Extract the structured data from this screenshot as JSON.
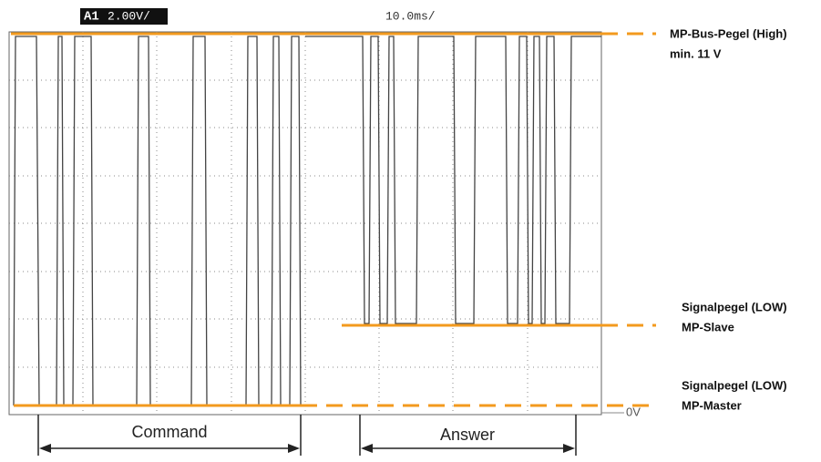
{
  "scope": {
    "channel": "A1",
    "volts_per_div": "2.00V/",
    "time_per_div": "10.0ms/",
    "zero_label": "0V"
  },
  "levels": {
    "high": {
      "title": "MP-Bus-Pegel (High)",
      "note": "min. 11 V"
    },
    "slave": {
      "title": "Signalpegel (LOW)",
      "note": "MP-Slave"
    },
    "master": {
      "title": "Signalpegel (LOW)",
      "note": "MP-Master"
    }
  },
  "phases": {
    "command": "Command",
    "answer": "Answer"
  }
}
